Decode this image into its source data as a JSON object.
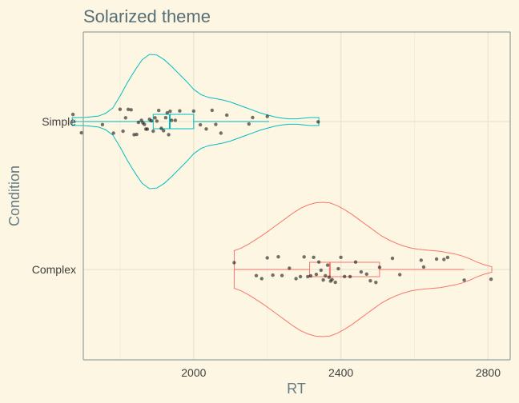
{
  "chart_data": {
    "type": "violin",
    "title": "Solarized theme",
    "xlabel": "RT",
    "ylabel": "Condition",
    "xlim": [
      1700,
      2860
    ],
    "x_ticks": [
      2000,
      2400,
      2800
    ],
    "x_minor_ticks": [
      1800,
      2200,
      2600
    ],
    "grid": true,
    "categories": [
      "Simple",
      "Complex"
    ],
    "series": [
      {
        "category": "Simple",
        "color": "#00BFC4",
        "range": [
          1670,
          2340
        ],
        "density": [
          [
            1670,
            0.06
          ],
          [
            1700,
            0.06
          ],
          [
            1720,
            0.07
          ],
          [
            1740,
            0.08
          ],
          [
            1760,
            0.12
          ],
          [
            1780,
            0.2
          ],
          [
            1800,
            0.38
          ],
          [
            1820,
            0.58
          ],
          [
            1840,
            0.76
          ],
          [
            1860,
            0.92
          ],
          [
            1880,
            1.0
          ],
          [
            1900,
            0.99
          ],
          [
            1920,
            0.92
          ],
          [
            1940,
            0.82
          ],
          [
            1960,
            0.71
          ],
          [
            1980,
            0.6
          ],
          [
            2000,
            0.48
          ],
          [
            2020,
            0.4
          ],
          [
            2040,
            0.36
          ],
          [
            2060,
            0.34
          ],
          [
            2080,
            0.32
          ],
          [
            2100,
            0.29
          ],
          [
            2120,
            0.25
          ],
          [
            2140,
            0.21
          ],
          [
            2160,
            0.17
          ],
          [
            2180,
            0.13
          ],
          [
            2200,
            0.1
          ],
          [
            2220,
            0.07
          ],
          [
            2240,
            0.05
          ],
          [
            2260,
            0.04
          ],
          [
            2280,
            0.04
          ],
          [
            2300,
            0.05
          ],
          [
            2315,
            0.06
          ],
          [
            2330,
            0.06
          ],
          [
            2340,
            0.06
          ]
        ],
        "box": {
          "min": 1670,
          "q1": 1890,
          "median": 1935,
          "q3": 2000,
          "max": 2205
        },
        "points": [
          1672,
          1695,
          1752,
          1782,
          1800,
          1808,
          1815,
          1822,
          1830,
          1838,
          1845,
          1850,
          1858,
          1862,
          1866,
          1870,
          1874,
          1880,
          1885,
          1890,
          1895,
          1900,
          1905,
          1912,
          1918,
          1924,
          1928,
          1932,
          1936,
          1940,
          1950,
          1962,
          2000,
          2018,
          2034,
          2050,
          2060,
          2074,
          2090,
          2150,
          2160,
          2200,
          2338
        ]
      },
      {
        "category": "Complex",
        "color": "#F8766D",
        "range": [
          2110,
          2810
        ],
        "density": [
          [
            2110,
            0.28
          ],
          [
            2130,
            0.32
          ],
          [
            2150,
            0.38
          ],
          [
            2170,
            0.45
          ],
          [
            2190,
            0.52
          ],
          [
            2210,
            0.6
          ],
          [
            2230,
            0.68
          ],
          [
            2250,
            0.76
          ],
          [
            2270,
            0.84
          ],
          [
            2290,
            0.91
          ],
          [
            2310,
            0.96
          ],
          [
            2330,
            0.99
          ],
          [
            2350,
            1.0
          ],
          [
            2370,
            0.99
          ],
          [
            2390,
            0.95
          ],
          [
            2410,
            0.89
          ],
          [
            2430,
            0.82
          ],
          [
            2450,
            0.74
          ],
          [
            2470,
            0.66
          ],
          [
            2490,
            0.58
          ],
          [
            2510,
            0.5
          ],
          [
            2530,
            0.44
          ],
          [
            2550,
            0.39
          ],
          [
            2570,
            0.35
          ],
          [
            2590,
            0.32
          ],
          [
            2610,
            0.3
          ],
          [
            2630,
            0.29
          ],
          [
            2650,
            0.28
          ],
          [
            2670,
            0.27
          ],
          [
            2690,
            0.25
          ],
          [
            2710,
            0.23
          ],
          [
            2730,
            0.2
          ],
          [
            2750,
            0.16
          ],
          [
            2770,
            0.11
          ],
          [
            2790,
            0.07
          ],
          [
            2810,
            0.04
          ]
        ],
        "box": {
          "min": 2110,
          "q1": 2315,
          "median": 2370,
          "q3": 2505,
          "max": 2735
        },
        "points": [
          2110,
          2170,
          2185,
          2200,
          2215,
          2230,
          2240,
          2260,
          2278,
          2290,
          2300,
          2310,
          2318,
          2326,
          2333,
          2340,
          2346,
          2352,
          2358,
          2364,
          2368,
          2372,
          2376,
          2385,
          2393,
          2400,
          2410,
          2425,
          2440,
          2455,
          2470,
          2480,
          2495,
          2505,
          2540,
          2560,
          2618,
          2625,
          2660,
          2680,
          2690,
          2735,
          2808
        ]
      }
    ]
  }
}
